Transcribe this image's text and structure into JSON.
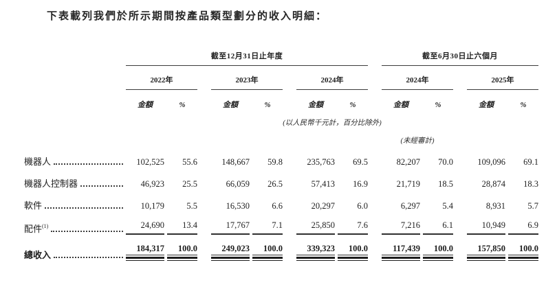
{
  "intro": "下表載列我們於所示期間按產品類型劃分的收入明細：",
  "table": {
    "groups": [
      {
        "label": "截至12月31日止年度",
        "years": [
          "2022年",
          "2023年",
          "2024年"
        ]
      },
      {
        "label": "截至6月30日止六個月",
        "years": [
          "2024年",
          "2025年"
        ]
      }
    ],
    "subheader": {
      "amount": "金額",
      "percent": "%"
    },
    "notes": {
      "units": "(以人民幣千元計，百分比除外)",
      "unaudited": "(未經審計)"
    },
    "rows": [
      {
        "label": "機器人",
        "footnote": "",
        "values": [
          "102,525",
          "55.6",
          "148,667",
          "59.8",
          "235,763",
          "69.5",
          "82,207",
          "70.0",
          "109,096",
          "69.1"
        ]
      },
      {
        "label": "機器人控制器",
        "footnote": "",
        "values": [
          "46,923",
          "25.5",
          "66,059",
          "26.5",
          "57,413",
          "16.9",
          "21,719",
          "18.5",
          "28,874",
          "18.3"
        ]
      },
      {
        "label": "軟件",
        "footnote": "",
        "values": [
          "10,179",
          "5.5",
          "16,530",
          "6.6",
          "20,297",
          "6.0",
          "6,297",
          "5.4",
          "8,931",
          "5.7"
        ]
      },
      {
        "label": "配件",
        "footnote": "(1)",
        "values": [
          "24,690",
          "13.4",
          "17,767",
          "7.1",
          "25,850",
          "7.6",
          "7,216",
          "6.1",
          "10,949",
          "6.9"
        ]
      }
    ],
    "total": {
      "label": "總收入",
      "values": [
        "184,317",
        "100.0",
        "249,023",
        "100.0",
        "339,323",
        "100.0",
        "117,439",
        "100.0",
        "157,850",
        "100.0"
      ]
    }
  }
}
